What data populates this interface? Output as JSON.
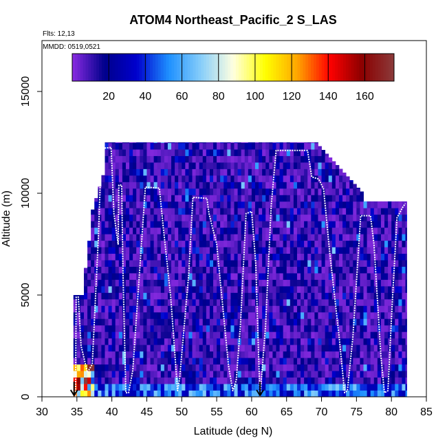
{
  "chart_data": {
    "type": "heatmap",
    "title": "ATOM4 Northeast_Pacific_2 S_LAS",
    "flights_label": "Flts: 12,13",
    "dates_label": "MMDD: 0519,0521",
    "xlabel": "Latitude (deg N)",
    "ylabel": "Altitude (m)",
    "xlim": [
      30,
      85
    ],
    "ylim": [
      0,
      17500
    ],
    "x_ticks": [
      30,
      35,
      40,
      45,
      50,
      55,
      60,
      65,
      70,
      75,
      80,
      85
    ],
    "y_ticks": [
      0,
      5000,
      10000,
      15000
    ],
    "colorbar": {
      "range": [
        0,
        176
      ],
      "ticks": [
        20,
        40,
        60,
        80,
        100,
        120,
        140,
        160
      ],
      "colors": [
        "#8a2be2",
        "#00008b",
        "#0000cd",
        "#1e90ff",
        "#87cefa",
        "#ffffe0",
        "#ffff00",
        "#ffa500",
        "#ff0000",
        "#8b0000",
        "#8b3a3a"
      ]
    },
    "arrow_markers_lat": [
      34.6,
      61.2
    ],
    "flight_track": [
      [
        34.8,
        0
      ],
      [
        34.9,
        4900
      ],
      [
        35.2,
        4900
      ],
      [
        35.6,
        2500
      ],
      [
        36.5,
        1200
      ],
      [
        37.2,
        1600
      ],
      [
        38.1,
        8000
      ],
      [
        38.5,
        12200
      ],
      [
        39.9,
        12250
      ],
      [
        40.3,
        9000
      ],
      [
        40.9,
        7500
      ],
      [
        41.0,
        10400
      ],
      [
        41.4,
        10400
      ],
      [
        41.6,
        6000
      ],
      [
        42.0,
        200
      ],
      [
        42.4,
        200
      ],
      [
        43.0,
        1300
      ],
      [
        44.8,
        10300
      ],
      [
        46.8,
        10250
      ],
      [
        47.4,
        8200
      ],
      [
        48.4,
        5000
      ],
      [
        49.4,
        300
      ],
      [
        49.7,
        900
      ],
      [
        51.0,
        6000
      ],
      [
        51.6,
        9800
      ],
      [
        53.6,
        9750
      ],
      [
        53.9,
        9000
      ],
      [
        55.0,
        7500
      ],
      [
        56.7,
        1500
      ],
      [
        57.3,
        300
      ],
      [
        57.8,
        800
      ],
      [
        58.4,
        3500
      ],
      [
        59.2,
        9000
      ],
      [
        60.0,
        9100
      ],
      [
        60.6,
        6500
      ],
      [
        61.0,
        2000
      ],
      [
        61.2,
        0
      ],
      [
        62.0,
        3500
      ],
      [
        62.8,
        9400
      ],
      [
        63.5,
        12100
      ],
      [
        68.0,
        12100
      ],
      [
        68.6,
        10800
      ],
      [
        69.6,
        10700
      ],
      [
        70.3,
        10200
      ],
      [
        71.2,
        7000
      ],
      [
        72.5,
        3000
      ],
      [
        73.3,
        200
      ],
      [
        73.7,
        300
      ],
      [
        74.5,
        3000
      ],
      [
        75.6,
        8900
      ],
      [
        77.0,
        8900
      ],
      [
        77.5,
        7500
      ],
      [
        78.5,
        2000
      ],
      [
        79.0,
        200
      ],
      [
        79.5,
        300
      ],
      [
        80.1,
        4500
      ],
      [
        80.8,
        8800
      ],
      [
        81.6,
        9300
      ],
      [
        82.0,
        9500
      ]
    ]
  }
}
